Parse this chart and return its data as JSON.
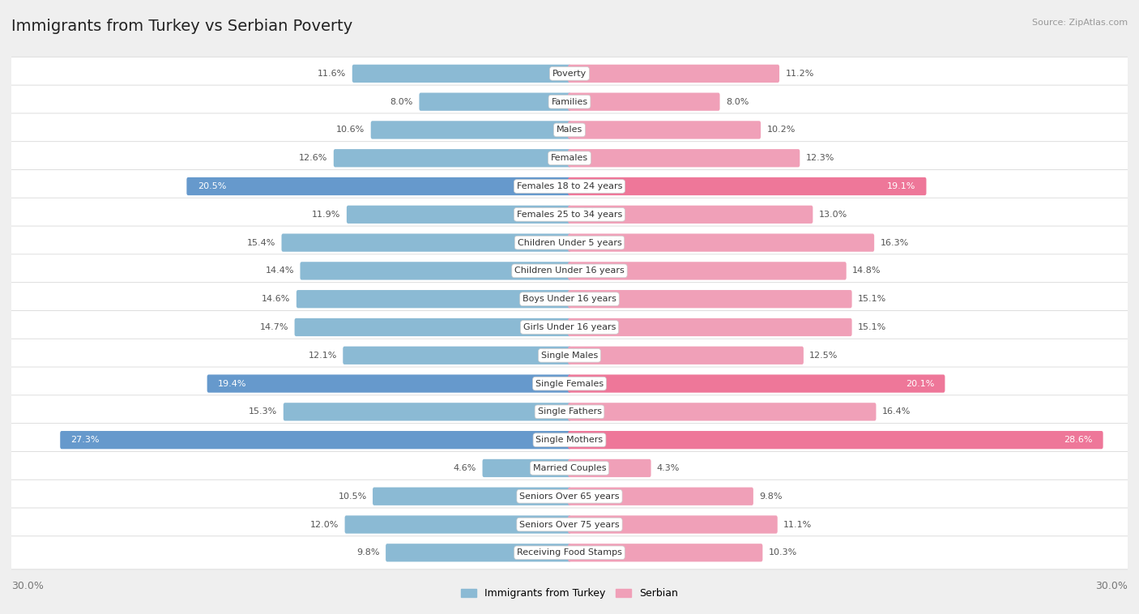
{
  "title": "Immigrants from Turkey vs Serbian Poverty",
  "source": "Source: ZipAtlas.com",
  "categories": [
    "Poverty",
    "Families",
    "Males",
    "Females",
    "Females 18 to 24 years",
    "Females 25 to 34 years",
    "Children Under 5 years",
    "Children Under 16 years",
    "Boys Under 16 years",
    "Girls Under 16 years",
    "Single Males",
    "Single Females",
    "Single Fathers",
    "Single Mothers",
    "Married Couples",
    "Seniors Over 65 years",
    "Seniors Over 75 years",
    "Receiving Food Stamps"
  ],
  "turkey_values": [
    11.6,
    8.0,
    10.6,
    12.6,
    20.5,
    11.9,
    15.4,
    14.4,
    14.6,
    14.7,
    12.1,
    19.4,
    15.3,
    27.3,
    4.6,
    10.5,
    12.0,
    9.8
  ],
  "serbian_values": [
    11.2,
    8.0,
    10.2,
    12.3,
    19.1,
    13.0,
    16.3,
    14.8,
    15.1,
    15.1,
    12.5,
    20.1,
    16.4,
    28.6,
    4.3,
    9.8,
    11.1,
    10.3
  ],
  "turkey_color_normal": "#8bbad4",
  "serbian_color_normal": "#f0a0b8",
  "turkey_color_highlight": "#6699cc",
  "serbian_color_highlight": "#ee7799",
  "highlight_threshold": 18.5,
  "bg_color": "#efefef",
  "row_bg_color": "#ffffff",
  "max_val": 30.0,
  "legend_turkey": "Immigrants from Turkey",
  "legend_serbian": "Serbian",
  "axis_label_left": "30.0%",
  "axis_label_right": "30.0%",
  "title_fontsize": 14,
  "label_fontsize": 8,
  "cat_fontsize": 8
}
